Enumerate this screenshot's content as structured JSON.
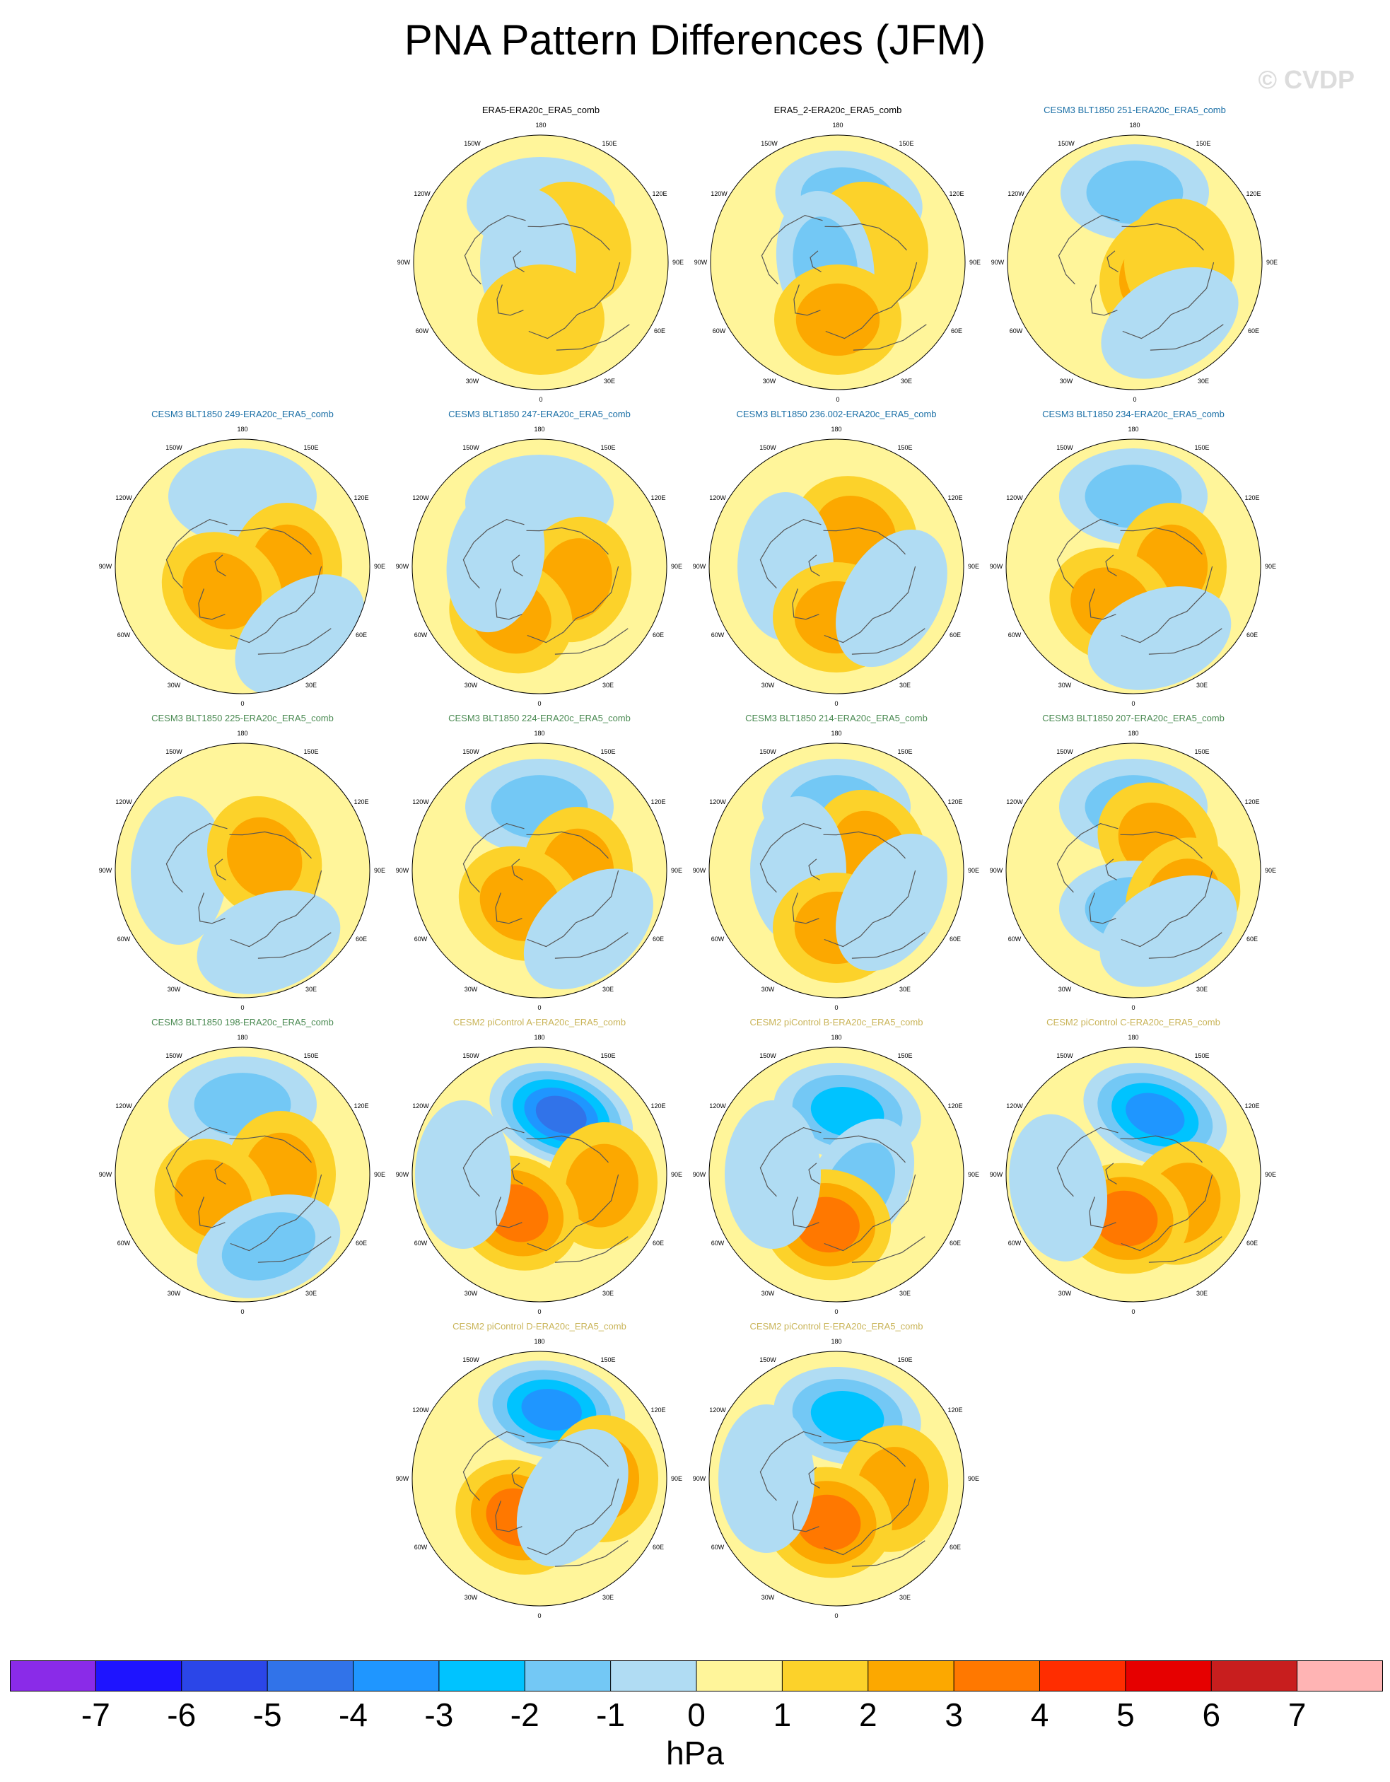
{
  "title": "PNA Pattern Differences (JFM)",
  "watermark": "© CVDP",
  "units": "hPa",
  "colorbar": {
    "ticks": [
      "-7",
      "-6",
      "-5",
      "-4",
      "-3",
      "-2",
      "-1",
      "0",
      "1",
      "2",
      "3",
      "4",
      "5",
      "6",
      "7"
    ],
    "colors": [
      "#8a2be8",
      "#1e14ff",
      "#2b46e8",
      "#3173e9",
      "#1f96ff",
      "#00c3ff",
      "#73c8f5",
      "#b0dcf3",
      "#fff59a",
      "#fcd22a",
      "#fca800",
      "#ff7800",
      "#ff2d00",
      "#e60000",
      "#c81e1e",
      "#ffb4b4"
    ]
  },
  "lon_labels": [
    "180",
    "150E",
    "120E",
    "90E",
    "60E",
    "30E",
    "0",
    "30W",
    "60W",
    "90W",
    "120W",
    "150W"
  ],
  "panels": [
    {
      "title": "ERA5-ERA20c_ERA5_comb",
      "color": "#000000",
      "blobs": [
        {
          "lon": 180,
          "r": 0.45,
          "v": -1
        },
        {
          "lon": 120,
          "r": 0.3,
          "v": 1
        },
        {
          "lon": 270,
          "r": 0.1,
          "v": -1
        },
        {
          "lon": 0,
          "r": 0.45,
          "v": 1
        }
      ]
    },
    {
      "title": "ERA5_2-ERA20c_ERA5_comb",
      "color": "#000000",
      "blobs": [
        {
          "lon": 170,
          "r": 0.5,
          "v": -2
        },
        {
          "lon": 120,
          "r": 0.3,
          "v": 1
        },
        {
          "lon": 280,
          "r": 0.1,
          "v": -2
        },
        {
          "lon": 0,
          "r": 0.45,
          "v": 2
        }
      ]
    },
    {
      "title": "CESM3 BLT1850 251-ERA20c_ERA5_comb",
      "color": "#1a6fa6",
      "blobs": [
        {
          "lon": 180,
          "r": 0.55,
          "v": -2
        },
        {
          "lon": 60,
          "r": 0.2,
          "v": 2
        },
        {
          "lon": 90,
          "r": 0.35,
          "v": 1
        },
        {
          "lon": 30,
          "r": 0.55,
          "v": -1
        }
      ]
    },
    {
      "title": "CESM3 BLT1850 249-ERA20c_ERA5_comb",
      "color": "#1a6fa6",
      "blobs": [
        {
          "lon": 180,
          "r": 0.55,
          "v": -1
        },
        {
          "lon": 90,
          "r": 0.35,
          "v": 2
        },
        {
          "lon": 320,
          "r": 0.25,
          "v": 2
        },
        {
          "lon": 40,
          "r": 0.7,
          "v": -1
        }
      ]
    },
    {
      "title": "CESM3 BLT1850 247-ERA20c_ERA5_comb",
      "color": "#1a6fa6",
      "blobs": [
        {
          "lon": 180,
          "r": 0.5,
          "v": -1
        },
        {
          "lon": 70,
          "r": 0.3,
          "v": 2
        },
        {
          "lon": 330,
          "r": 0.45,
          "v": 2
        },
        {
          "lon": 260,
          "r": 0.35,
          "v": -1
        }
      ]
    },
    {
      "title": "CESM3 BLT1850 236.002-ERA20c_ERA5_comb",
      "color": "#1a6fa6",
      "blobs": [
        {
          "lon": 150,
          "r": 0.3,
          "v": 2
        },
        {
          "lon": 270,
          "r": 0.4,
          "v": -1
        },
        {
          "lon": 0,
          "r": 0.4,
          "v": 2
        },
        {
          "lon": 60,
          "r": 0.5,
          "v": -1
        }
      ]
    },
    {
      "title": "CESM3 BLT1850 234-ERA20c_ERA5_comb",
      "color": "#1a6fa6",
      "blobs": [
        {
          "lon": 180,
          "r": 0.55,
          "v": -2
        },
        {
          "lon": 90,
          "r": 0.3,
          "v": 2
        },
        {
          "lon": 330,
          "r": 0.35,
          "v": 2
        },
        {
          "lon": 20,
          "r": 0.6,
          "v": -1
        }
      ]
    },
    {
      "title": "CESM3 BLT1850 225-ERA20c_ERA5_comb",
      "color": "#4a8a52",
      "blobs": [
        {
          "lon": 270,
          "r": 0.5,
          "v": -1
        },
        {
          "lon": 120,
          "r": 0.2,
          "v": 2
        },
        {
          "lon": 20,
          "r": 0.6,
          "v": -1
        }
      ]
    },
    {
      "title": "CESM3 BLT1850 224-ERA20c_ERA5_comb",
      "color": "#4a8a52",
      "blobs": [
        {
          "lon": 180,
          "r": 0.5,
          "v": -2
        },
        {
          "lon": 90,
          "r": 0.3,
          "v": 2
        },
        {
          "lon": 330,
          "r": 0.3,
          "v": 2
        },
        {
          "lon": 40,
          "r": 0.6,
          "v": -1
        }
      ]
    },
    {
      "title": "CESM3 BLT1850 214-ERA20c_ERA5_comb",
      "color": "#4a8a52",
      "blobs": [
        {
          "lon": 180,
          "r": 0.5,
          "v": -2
        },
        {
          "lon": 120,
          "r": 0.3,
          "v": 2
        },
        {
          "lon": 270,
          "r": 0.3,
          "v": -1
        },
        {
          "lon": 0,
          "r": 0.45,
          "v": 2
        },
        {
          "lon": 60,
          "r": 0.5,
          "v": -1
        }
      ]
    },
    {
      "title": "CESM3 BLT1850 207-ERA20c_ERA5_comb",
      "color": "#4a8a52",
      "blobs": [
        {
          "lon": 180,
          "r": 0.5,
          "v": -2
        },
        {
          "lon": 140,
          "r": 0.3,
          "v": 2
        },
        {
          "lon": 0,
          "r": 0.3,
          "v": -2
        },
        {
          "lon": 60,
          "r": 0.45,
          "v": 2
        },
        {
          "lon": 30,
          "r": 0.55,
          "v": -1
        }
      ]
    },
    {
      "title": "CESM3 BLT1850 198-ERA20c_ERA5_comb",
      "color": "#4a8a52",
      "blobs": [
        {
          "lon": 180,
          "r": 0.55,
          "v": -2
        },
        {
          "lon": 90,
          "r": 0.3,
          "v": 2
        },
        {
          "lon": 310,
          "r": 0.3,
          "v": 2
        },
        {
          "lon": 20,
          "r": 0.6,
          "v": -2
        }
      ]
    },
    {
      "title": "CESM2 piControl A-ERA20c_ERA5_comb",
      "color": "#c9b458",
      "blobs": [
        {
          "lon": 160,
          "r": 0.5,
          "v": -5
        },
        {
          "lon": 80,
          "r": 0.5,
          "v": 2
        },
        {
          "lon": 330,
          "r": 0.35,
          "v": 3
        },
        {
          "lon": 270,
          "r": 0.6,
          "v": -1
        }
      ]
    },
    {
      "title": "CESM2 piControl B-ERA20c_ERA5_comb",
      "color": "#c9b458",
      "blobs": [
        {
          "lon": 170,
          "r": 0.5,
          "v": -3
        },
        {
          "lon": 60,
          "r": 0.2,
          "v": -2
        },
        {
          "lon": 350,
          "r": 0.4,
          "v": 3
        },
        {
          "lon": 270,
          "r": 0.5,
          "v": -1
        }
      ]
    },
    {
      "title": "CESM2 piControl C-ERA20c_ERA5_comb",
      "color": "#c9b458",
      "blobs": [
        {
          "lon": 160,
          "r": 0.5,
          "v": -4
        },
        {
          "lon": 60,
          "r": 0.45,
          "v": 2
        },
        {
          "lon": 350,
          "r": 0.35,
          "v": 3
        },
        {
          "lon": 280,
          "r": 0.6,
          "v": -1
        }
      ]
    },
    {
      "title": "CESM2 piControl D-ERA20c_ERA5_comb",
      "color": "#c9b458",
      "blobs": [
        {
          "lon": 170,
          "r": 0.55,
          "v": -4
        },
        {
          "lon": 90,
          "r": 0.5,
          "v": 2
        },
        {
          "lon": 330,
          "r": 0.35,
          "v": 3
        },
        {
          "lon": 60,
          "r": 0.3,
          "v": -1
        }
      ]
    },
    {
      "title": "CESM2 piControl E-ERA20c_ERA5_comb",
      "color": "#c9b458",
      "blobs": [
        {
          "lon": 170,
          "r": 0.5,
          "v": -3
        },
        {
          "lon": 80,
          "r": 0.45,
          "v": 2
        },
        {
          "lon": 350,
          "r": 0.35,
          "v": 3
        },
        {
          "lon": 270,
          "r": 0.55,
          "v": -1
        }
      ]
    }
  ]
}
